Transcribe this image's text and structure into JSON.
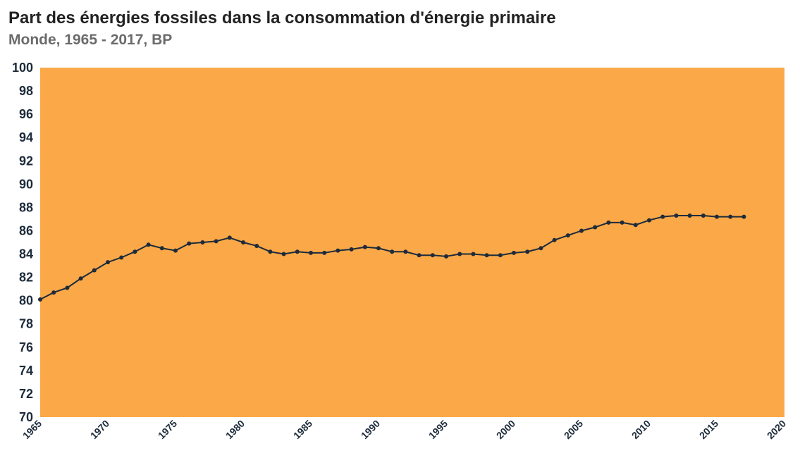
{
  "header": {
    "title": "Part des énergies fossiles dans la consommation d'énergie primaire",
    "subtitle": "Monde, 1965 - 2017, BP"
  },
  "colors": {
    "plot_background": "#FBA848",
    "line": "#1d2b3a",
    "tick_text": "#1d2b3a"
  },
  "chart_data": {
    "type": "line",
    "title": "Part des énergies fossiles dans la consommation d'énergie primaire",
    "subtitle": "Monde, 1965 - 2017, BP",
    "xlabel": "",
    "ylabel": "",
    "xlim": [
      1965,
      2020
    ],
    "ylim": [
      70,
      100
    ],
    "x_ticks": [
      "1965",
      "1970",
      "1975",
      "1980",
      "1985",
      "1990",
      "1995",
      "2000",
      "2005",
      "2010",
      "2015",
      "2020"
    ],
    "y_ticks": [
      "70",
      "72",
      "74",
      "76",
      "78",
      "80",
      "82",
      "84",
      "86",
      "88",
      "90",
      "92",
      "94",
      "96",
      "98",
      "100"
    ],
    "grid": false,
    "legend": "none",
    "x": [
      1965,
      1966,
      1967,
      1968,
      1969,
      1970,
      1971,
      1972,
      1973,
      1974,
      1975,
      1976,
      1977,
      1978,
      1979,
      1980,
      1981,
      1982,
      1983,
      1984,
      1985,
      1986,
      1987,
      1988,
      1989,
      1990,
      1991,
      1992,
      1993,
      1994,
      1995,
      1996,
      1997,
      1998,
      1999,
      2000,
      2001,
      2002,
      2003,
      2004,
      2005,
      2006,
      2007,
      2008,
      2009,
      2010,
      2011,
      2012,
      2013,
      2014,
      2015,
      2016,
      2017
    ],
    "series": [
      {
        "values": [
          80.1,
          80.7,
          81.1,
          81.9,
          82.6,
          83.3,
          83.7,
          84.2,
          84.8,
          84.5,
          84.3,
          84.9,
          85.0,
          85.1,
          85.4,
          85.0,
          84.7,
          84.2,
          84.0,
          84.2,
          84.1,
          84.1,
          84.3,
          84.4,
          84.6,
          84.5,
          84.2,
          84.2,
          83.9,
          83.9,
          83.8,
          84.0,
          84.0,
          83.9,
          83.9,
          84.1,
          84.2,
          84.5,
          85.2,
          85.6,
          86.0,
          86.3,
          86.7,
          86.7,
          86.5,
          86.9,
          87.2,
          87.3,
          87.3,
          87.3,
          87.2,
          87.2,
          87.2
        ]
      }
    ]
  }
}
